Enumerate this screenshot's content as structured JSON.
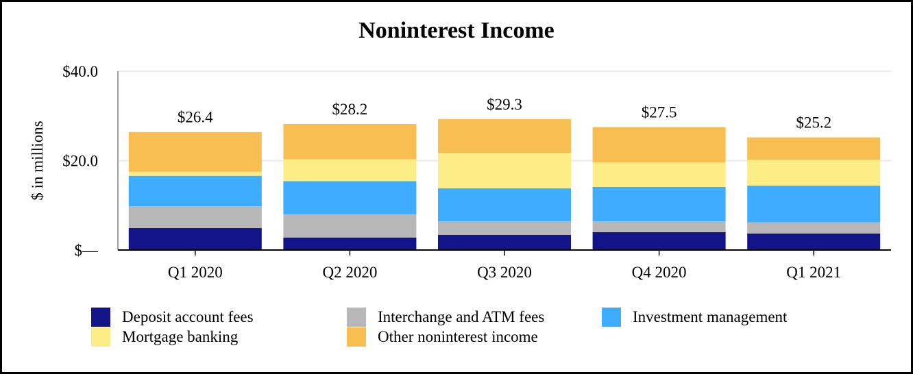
{
  "chart_data": {
    "type": "bar",
    "stacked": true,
    "title": "Noninterest Income",
    "ylabel": "$ in millions",
    "xlabel": "",
    "ylim": [
      0,
      40
    ],
    "yticks": [
      {
        "value": 0,
        "label": "$—"
      },
      {
        "value": 20,
        "label": "$20.0"
      },
      {
        "value": 40,
        "label": "$40.0"
      }
    ],
    "grid": true,
    "legend_position": "bottom",
    "categories": [
      "Q1 2020",
      "Q2 2020",
      "Q3 2020",
      "Q4 2020",
      "Q1 2021"
    ],
    "totals": [
      26.4,
      28.2,
      29.3,
      27.5,
      25.2
    ],
    "total_labels": [
      "$26.4",
      "$28.2",
      "$29.3",
      "$27.5",
      "$25.2"
    ],
    "series": [
      {
        "name": "Deposit account fees",
        "color": "#141489",
        "values": [
          4.9,
          2.8,
          3.4,
          4.0,
          3.7
        ]
      },
      {
        "name": "Interchange and ATM fees",
        "color": "#b7b7b7",
        "values": [
          4.9,
          5.2,
          3.0,
          2.4,
          2.5
        ]
      },
      {
        "name": "Investment management",
        "color": "#3fadff",
        "values": [
          6.8,
          7.4,
          7.4,
          7.7,
          8.2
        ]
      },
      {
        "name": "Mortgage banking",
        "color": "#fded86",
        "values": [
          0.9,
          4.9,
          7.9,
          5.5,
          5.8
        ]
      },
      {
        "name": "Other noninterest income",
        "color": "#f9be51",
        "values": [
          8.9,
          7.9,
          7.6,
          7.9,
          5.0
        ]
      }
    ]
  }
}
